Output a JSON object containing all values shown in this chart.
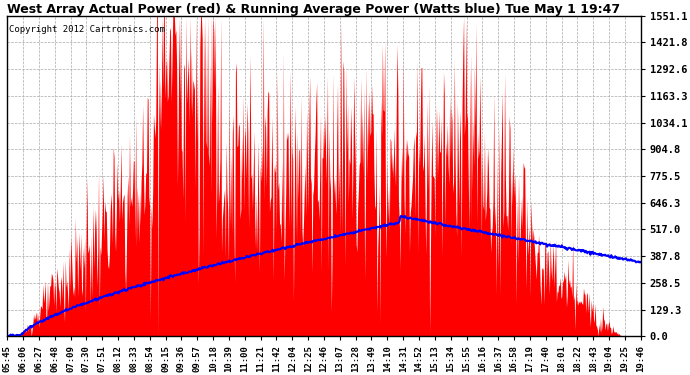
{
  "title": "West Array Actual Power (red) & Running Average Power (Watts blue) Tue May 1 19:47",
  "copyright": "Copyright 2012 Cartronics.com",
  "y_max": 1551.1,
  "y_ticks": [
    0.0,
    129.3,
    258.5,
    387.8,
    517.0,
    646.3,
    775.5,
    904.8,
    1034.1,
    1163.3,
    1292.6,
    1421.8,
    1551.1
  ],
  "bg_color": "#ffffff",
  "plot_bg_color": "#ffffff",
  "grid_color": "#aaaaaa",
  "red_color": "#ff0000",
  "blue_color": "#0000ff",
  "title_fontsize": 9,
  "copyright_fontsize": 6.5,
  "x_labels": [
    "05:45",
    "06:06",
    "06:27",
    "06:48",
    "07:09",
    "07:30",
    "07:51",
    "08:12",
    "08:33",
    "08:54",
    "09:15",
    "09:36",
    "09:57",
    "10:18",
    "10:39",
    "11:00",
    "11:21",
    "11:42",
    "12:04",
    "12:25",
    "12:46",
    "13:07",
    "13:28",
    "13:49",
    "14:10",
    "14:31",
    "14:52",
    "15:13",
    "15:34",
    "15:55",
    "16:16",
    "16:37",
    "16:58",
    "17:19",
    "17:40",
    "18:01",
    "18:22",
    "18:43",
    "19:04",
    "19:25",
    "19:46"
  ]
}
